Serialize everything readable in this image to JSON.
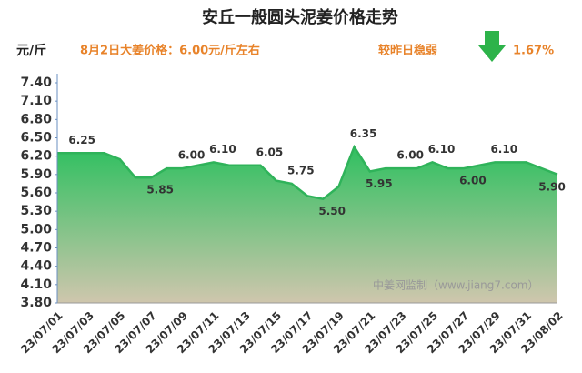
{
  "chart_data": {
    "type": "area",
    "title": "安丘一般圆头泥姜价格走势",
    "y_label": "元/斤",
    "subtitle": "8月2日大姜价格：6.00元/斤左右",
    "change_text": "较昨日稳弱",
    "change_value": "1.67%",
    "watermark": "中姜网监制（www.jiang7.com）",
    "categories": [
      "23/07/01",
      null,
      "23/07/03",
      null,
      "23/07/05",
      null,
      "23/07/07",
      null,
      "23/07/09",
      null,
      "23/07/11",
      null,
      "23/07/13",
      null,
      "23/07/15",
      null,
      "23/07/17",
      null,
      "23/07/19",
      null,
      "23/07/21",
      null,
      "23/07/23",
      null,
      "23/07/25",
      null,
      "23/07/27",
      null,
      "23/07/29",
      null,
      "23/07/31",
      null,
      "23/08/02"
    ],
    "values": [
      6.25,
      6.25,
      6.25,
      6.25,
      6.15,
      5.85,
      5.85,
      6.0,
      6.0,
      6.05,
      6.1,
      6.05,
      6.05,
      6.05,
      5.8,
      5.75,
      5.55,
      5.5,
      5.7,
      6.35,
      5.95,
      6.0,
      6.0,
      6.0,
      6.1,
      6.0,
      6.0,
      6.05,
      6.1,
      6.1,
      6.1,
      6.0,
      5.9
    ],
    "value_labels": [
      null,
      "6.25",
      null,
      null,
      null,
      null,
      "5.85",
      null,
      "6.00",
      null,
      "6.10",
      null,
      null,
      "6.05",
      null,
      "5.75",
      null,
      "5.50",
      null,
      "6.35",
      "5.95",
      null,
      "6.00",
      null,
      "6.10",
      null,
      "6.00",
      null,
      "6.10",
      null,
      null,
      null,
      "5.90"
    ],
    "color": "#2fb35a",
    "ylim": [
      3.8,
      7.4
    ],
    "yticks": [
      {
        "value": 3.8,
        "label": "3.80"
      },
      {
        "value": 4.1,
        "label": "4.10"
      },
      {
        "value": 4.4,
        "label": "4.40"
      },
      {
        "value": 4.7,
        "label": "4.70"
      },
      {
        "value": 5.0,
        "label": "5.00"
      },
      {
        "value": 5.3,
        "label": "5.30"
      },
      {
        "value": 5.6,
        "label": "5.60"
      },
      {
        "value": 5.9,
        "label": "5.90"
      },
      {
        "value": 6.2,
        "label": "6.20"
      },
      {
        "value": 6.5,
        "label": "6.50"
      },
      {
        "value": 6.8,
        "label": "6.80"
      },
      {
        "value": 7.1,
        "label": "7.10"
      },
      {
        "value": 7.4,
        "label": "7.40"
      }
    ]
  }
}
